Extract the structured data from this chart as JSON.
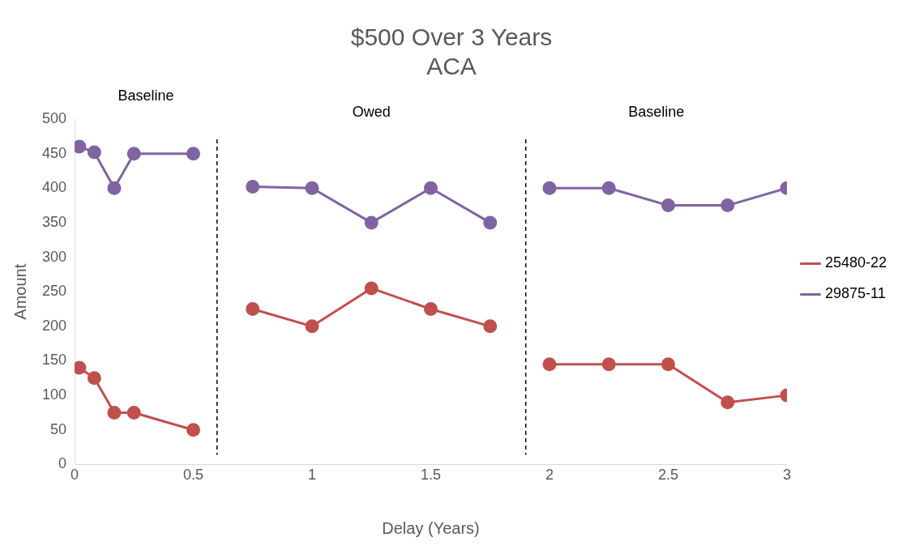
{
  "chart_data": {
    "type": "line",
    "title": "$500 Over 3 Years",
    "subtitle": "ACA",
    "xlabel": "Delay (Years)",
    "ylabel": "Amount",
    "series": [
      {
        "name": "25480-22",
        "color": "#c0504d",
        "x": [
          0.02,
          0.083,
          0.167,
          0.25,
          0.5
        ],
        "values": [
          140,
          125,
          75,
          75,
          50
        ]
      },
      {
        "color": "#c0504d",
        "x": [
          0.75,
          1,
          1.25,
          1.5,
          1.75
        ],
        "values": [
          225,
          200,
          255,
          225,
          200
        ]
      },
      {
        "color": "#c0504d",
        "x": [
          2,
          2.25,
          2.5,
          2.75,
          3
        ],
        "values": [
          145,
          145,
          145,
          90,
          100
        ]
      },
      {
        "name": "29875-11",
        "color": "#8064a2",
        "x": [
          0.02,
          0.083,
          0.167,
          0.25,
          0.5
        ],
        "values": [
          460,
          452,
          400,
          450,
          450
        ]
      },
      {
        "color": "#8064a2",
        "x": [
          0.75,
          1,
          1.25,
          1.5,
          1.75
        ],
        "values": [
          402,
          400,
          350,
          400,
          350
        ]
      },
      {
        "color": "#8064a2",
        "x": [
          2,
          2.25,
          2.5,
          2.75,
          3
        ],
        "values": [
          400,
          400,
          375,
          375,
          400
        ]
      }
    ],
    "xlim": [
      0,
      3
    ],
    "xticks": [
      0,
      0.5,
      1,
      1.5,
      2,
      2.5,
      3
    ],
    "ylim": [
      0,
      500
    ],
    "yticks": [
      0,
      50,
      100,
      150,
      200,
      250,
      300,
      350,
      400,
      450,
      500
    ],
    "ref_lines": [
      {
        "axis": "x",
        "value": 0.6,
        "color": "#000000",
        "line_style": "dashed"
      },
      {
        "axis": "x",
        "value": 1.9,
        "color": "#000000",
        "line_style": "dashed"
      }
    ],
    "annotations": [
      "Baseline",
      "Owed",
      "Baseline"
    ],
    "legend": "right",
    "marker": "circle",
    "grid": false
  }
}
